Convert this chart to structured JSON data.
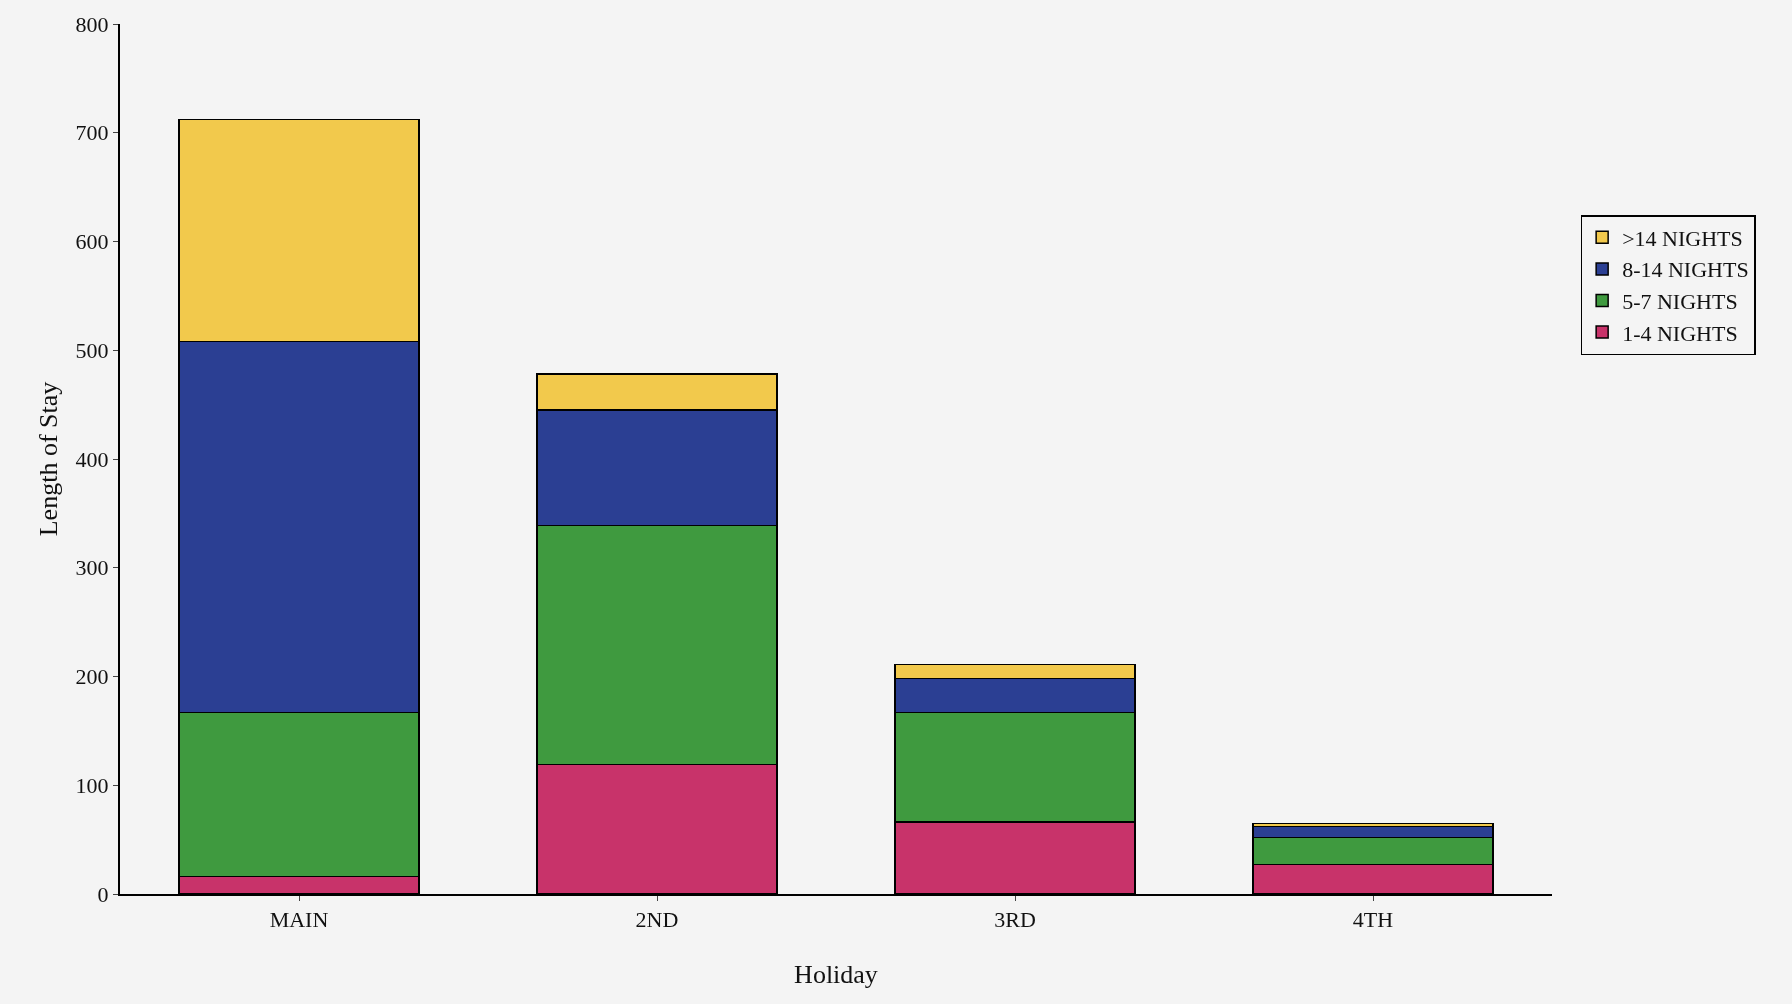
{
  "chart_data": {
    "type": "bar",
    "stacked": true,
    "xlabel": "Holiday",
    "ylabel": "Length of Stay",
    "categories": [
      "MAIN",
      "2ND",
      "3RD",
      "4TH"
    ],
    "series": [
      {
        "name": "1-4 NIGHTS",
        "color": "#c8336a",
        "values": [
          16,
          119,
          66,
          27
        ]
      },
      {
        "name": "5-7 NIGHTS",
        "color": "#3f9a3f",
        "values": [
          151,
          220,
          101,
          25
        ]
      },
      {
        "name": "8-14 NIGHTS",
        "color": "#2b3f93",
        "values": [
          341,
          106,
          31,
          10
        ]
      },
      {
        "name": ">14 NIGHTS",
        "color": "#f2c94c",
        "values": [
          204,
          33,
          13,
          3
        ]
      }
    ],
    "ylim": [
      0,
      800
    ],
    "yticks": [
      0,
      100,
      200,
      300,
      400,
      500,
      600,
      700,
      800
    ],
    "grid": false,
    "legend": "right"
  }
}
